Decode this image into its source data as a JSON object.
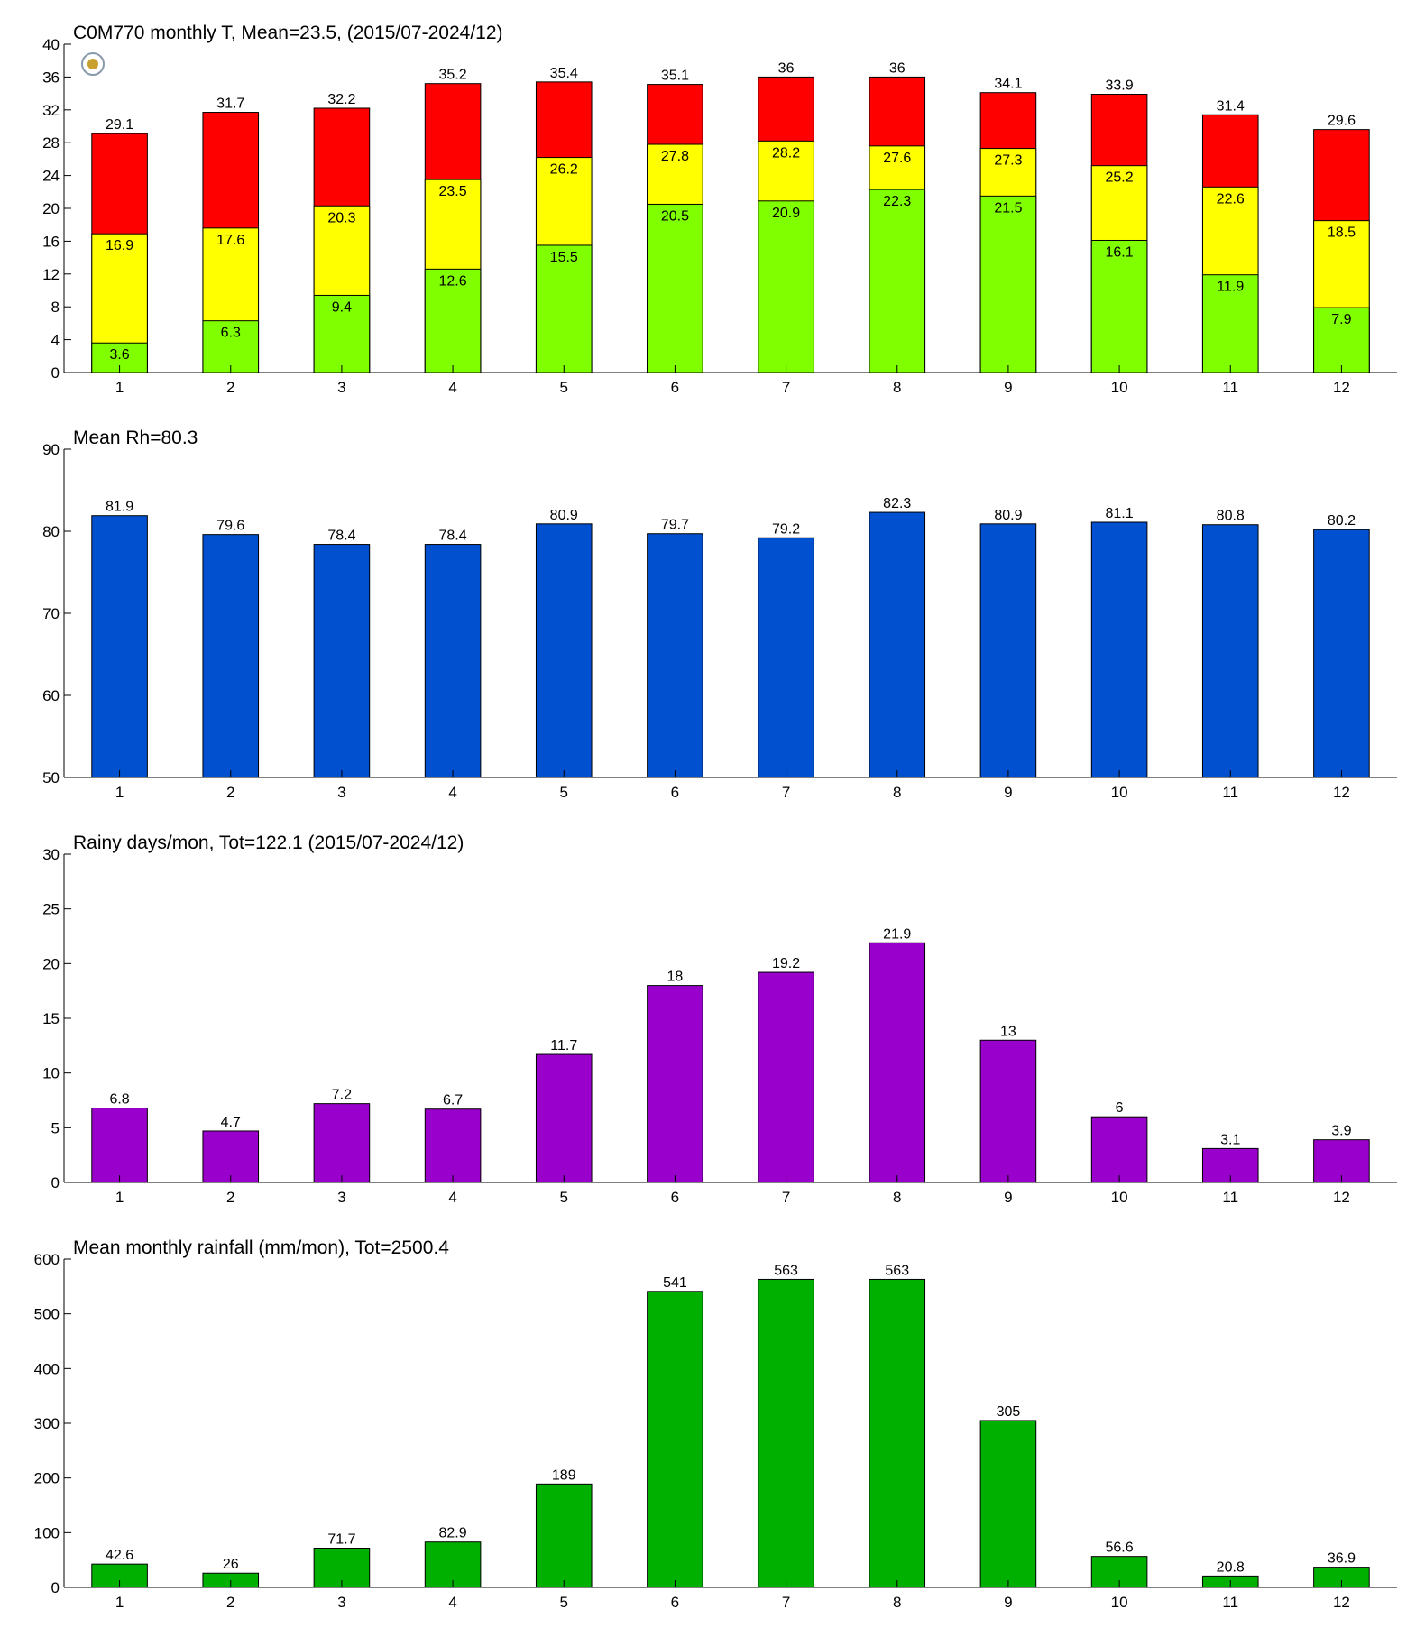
{
  "chart_data": [
    {
      "type": "overlaid-bar",
      "title": "C0M770 monthly T, Mean=23.5, (2015/07-2024/12)",
      "categories": [
        "1",
        "2",
        "3",
        "4",
        "5",
        "6",
        "7",
        "8",
        "9",
        "10",
        "11",
        "12"
      ],
      "series": [
        {
          "color": "#ff0000",
          "values": [
            29.1,
            31.7,
            32.2,
            35.2,
            35.4,
            35.1,
            36,
            36,
            34.1,
            33.9,
            31.4,
            29.6
          ]
        },
        {
          "color": "#ffff00",
          "values": [
            16.9,
            17.6,
            20.3,
            23.5,
            26.2,
            27.8,
            28.2,
            27.6,
            27.3,
            25.2,
            22.6,
            18.5
          ]
        },
        {
          "color": "#80ff00",
          "values": [
            3.6,
            6.3,
            9.4,
            12.6,
            15.5,
            20.5,
            20.9,
            22.3,
            21.5,
            16.1,
            11.9,
            7.9
          ]
        }
      ],
      "ylim": [
        0,
        40
      ],
      "yticks": [
        0,
        4,
        8,
        12,
        16,
        20,
        24,
        28,
        32,
        36,
        40
      ]
    },
    {
      "type": "bar",
      "title": "Mean Rh=80.3",
      "categories": [
        "1",
        "2",
        "3",
        "4",
        "5",
        "6",
        "7",
        "8",
        "9",
        "10",
        "11",
        "12"
      ],
      "values": [
        81.9,
        79.6,
        78.4,
        78.4,
        80.9,
        79.7,
        79.2,
        82.3,
        80.9,
        81.1,
        80.8,
        80.2
      ],
      "color": "#0050d0",
      "ylim": [
        50,
        90
      ],
      "yticks": [
        50,
        60,
        70,
        80,
        90
      ]
    },
    {
      "type": "bar",
      "title": "Rainy days/mon, Tot=122.1 (2015/07-2024/12)",
      "categories": [
        "1",
        "2",
        "3",
        "4",
        "5",
        "6",
        "7",
        "8",
        "9",
        "10",
        "11",
        "12"
      ],
      "values": [
        6.8,
        4.7,
        7.2,
        6.7,
        11.7,
        18,
        19.2,
        21.9,
        13,
        6,
        3.1,
        3.9
      ],
      "color": "#9900cc",
      "ylim": [
        0,
        30
      ],
      "yticks": [
        0,
        5,
        10,
        15,
        20,
        25,
        30
      ]
    },
    {
      "type": "bar",
      "title": "Mean monthly rainfall (mm/mon), Tot=2500.4",
      "categories": [
        "1",
        "2",
        "3",
        "4",
        "5",
        "6",
        "7",
        "8",
        "9",
        "10",
        "11",
        "12"
      ],
      "values": [
        42.6,
        26,
        71.7,
        82.9,
        189,
        541,
        563,
        563,
        305,
        56.6,
        20.8,
        36.9
      ],
      "color": "#00b000",
      "ylim": [
        0,
        600
      ],
      "yticks": [
        0,
        100,
        200,
        300,
        400,
        500,
        600
      ]
    }
  ]
}
